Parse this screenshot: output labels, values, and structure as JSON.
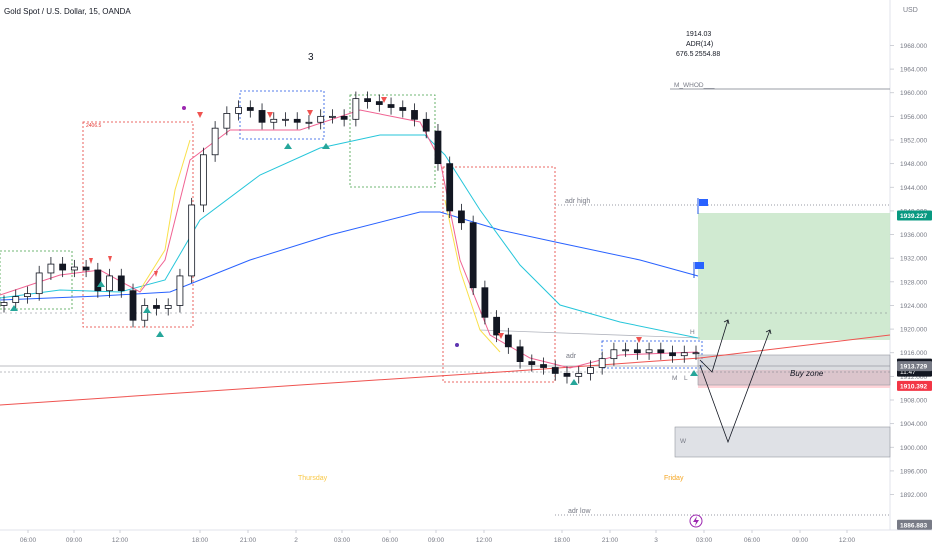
{
  "header": {
    "title": "Gold Spot / U.S. Dollar, 15, OANDA",
    "currency": "USD",
    "marker_3": "3",
    "stats_value": "1914.03",
    "stats_adr": "ADR(14)",
    "stats_range": "676.5 2554.88"
  },
  "chart_data": {
    "type": "candlestick",
    "symbol": "Gold Spot / U.S. Dollar",
    "timeframe": "15",
    "broker": "OANDA",
    "ylim": [
      1886.0,
      1974.0
    ],
    "y_ticks": [
      "1968.000",
      "1964.000",
      "1960.000",
      "1956.000",
      "1952.000",
      "1948.000",
      "1944.000",
      "1940.000",
      "1936.000",
      "1932.000",
      "1928.000",
      "1924.000",
      "1920.000",
      "1916.000",
      "1912.000",
      "1908.000",
      "1904.000",
      "1900.000",
      "1896.000",
      "1892.000"
    ],
    "x_ticks": [
      "06:00",
      "09:00",
      "12:00",
      "18:00",
      "21:00",
      "2",
      "03:00",
      "06:00",
      "09:00",
      "12:00",
      "18:00",
      "21:00",
      "3",
      "03:00",
      "06:00",
      "09:00",
      "12:00"
    ],
    "price_labels": [
      {
        "value": "1939.227",
        "color": "#089981"
      },
      {
        "value": "1914.165",
        "sub": "11:47",
        "color": "#131722"
      },
      {
        "value": "1913.729",
        "color": "#787b86"
      },
      {
        "value": "1910.392",
        "color": "#f23645"
      },
      {
        "value": "1886.883",
        "color": "#787b86"
      }
    ],
    "closes": [
      1924.5,
      1925.5,
      1926.0,
      1929.5,
      1931.0,
      1930.0,
      1930.5,
      1930.0,
      1926.5,
      1929.0,
      1926.5,
      1921.5,
      1924.0,
      1923.5,
      1924.0,
      1929.0,
      1941.0,
      1949.5,
      1954.0,
      1956.5,
      1957.5,
      1957.0,
      1955.0,
      1955.5,
      1955.5,
      1955.0,
      1955.0,
      1956.0,
      1956.0,
      1955.5,
      1959.0,
      1958.5,
      1958.0,
      1957.5,
      1957.0,
      1955.5,
      1953.5,
      1948.0,
      1940.0,
      1938.0,
      1927.0,
      1922.0,
      1919.0,
      1917.0,
      1914.5,
      1914.0,
      1913.5,
      1912.5,
      1912.0,
      1912.5,
      1913.5,
      1915.0,
      1916.5,
      1916.5,
      1916.0,
      1916.5,
      1916.0,
      1915.5,
      1916.0,
      1916.0
    ],
    "annotations": {
      "thursday": "Thursday",
      "friday": "Friday",
      "adr_high": "adr high",
      "adr_low": "adr low",
      "m_whod": "M_WHOD___",
      "buy_zone": "Buy zone",
      "adr_mid": "adr",
      "m_label": "M",
      "w_label": "W",
      "h_label": "H",
      "l_label": "L",
      "box_label": "2406.5"
    }
  }
}
